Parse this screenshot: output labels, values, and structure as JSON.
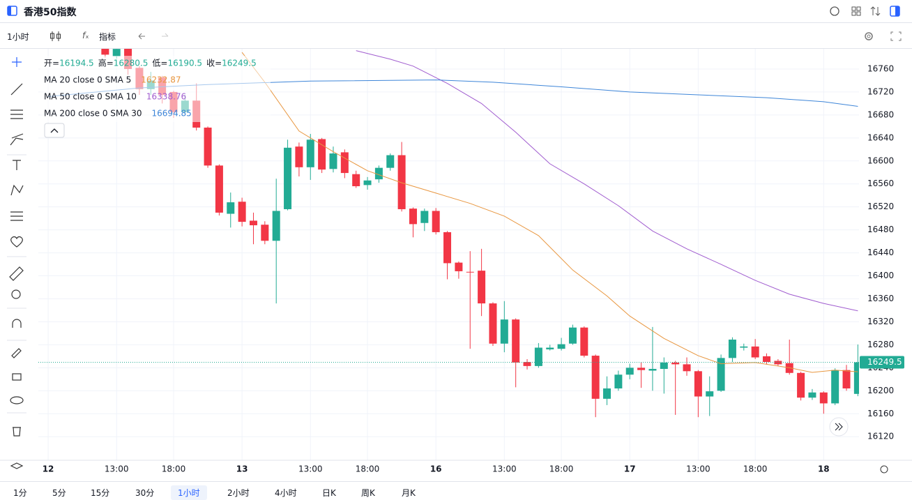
{
  "header": {
    "title": "香港50指数"
  },
  "toolbar": {
    "interval": "1小时",
    "indicator": "指标"
  },
  "timeframes": {
    "items": [
      "1分",
      "5分",
      "15分",
      "30分",
      "1小时",
      "2小时",
      "4小时",
      "日K",
      "周K",
      "月K"
    ],
    "selected": 4
  },
  "chart_data": {
    "type": "candlestick",
    "up_color": "#22ab94",
    "down_color": "#f23645",
    "x": [
      5,
      6,
      7,
      8,
      9,
      10,
      11,
      12,
      13,
      14,
      15,
      16,
      17,
      18,
      19,
      20,
      21,
      22,
      23,
      24,
      25,
      26,
      27,
      28,
      29,
      30,
      31,
      32,
      33,
      34,
      35,
      36,
      37,
      38,
      39,
      40,
      41,
      42,
      43,
      44,
      45,
      46,
      47,
      48,
      49,
      50,
      51,
      52,
      53,
      54,
      55,
      56,
      57,
      58,
      59,
      60,
      61,
      62,
      63,
      64,
      65,
      66,
      67,
      68,
      69,
      70,
      71
    ],
    "open": [
      16800,
      16782,
      16800,
      16762,
      16725,
      16745,
      16720,
      16685,
      16705,
      16658,
      16592,
      16508,
      16529,
      16496,
      16489,
      16461,
      16516,
      16625,
      16589,
      16638,
      16586,
      16615,
      16577,
      16558,
      16568,
      16588,
      16610,
      16517,
      16492,
      16513,
      16476,
      16423,
      16407,
      16409,
      16352,
      16282,
      16324,
      16250,
      16243,
      16272,
      16273,
      16282,
      16310,
      16261,
      16186,
      16204,
      16228,
      16240,
      16235,
      16238,
      16249,
      16246,
      16234,
      16190,
      16200,
      16257,
      16275,
      16277,
      16260,
      16252,
      16248,
      16231,
      16188,
      16197,
      16178,
      16236,
      16194.5
    ],
    "high": [
      16810,
      16805,
      16810,
      16765,
      16755,
      16748,
      16722,
      16715,
      16735,
      16660,
      16594,
      16545,
      16536,
      16510,
      16495,
      16569,
      16637,
      16632,
      16647,
      16640,
      16625,
      16620,
      16583,
      16572,
      16592,
      16613,
      16633,
      16519,
      16517,
      16518,
      16478,
      16425,
      16443,
      16447,
      16354,
      16356,
      16326,
      16255,
      16283,
      16280,
      16292,
      16315,
      16312,
      16263,
      16225,
      16235,
      16247,
      16250,
      16311,
      16258,
      16252,
      16258,
      16236,
      16225,
      16263,
      16293,
      16282,
      16290,
      16265,
      16255,
      16289,
      16233,
      16203,
      16199,
      16239,
      16245,
      16280.5
    ],
    "low": [
      16780,
      16778,
      16750,
      16715,
      16715,
      16700,
      16675,
      16680,
      16653,
      16588,
      16505,
      16484,
      16486,
      16455,
      16455,
      16352,
      16514,
      16573,
      16567,
      16579,
      16580,
      16570,
      16553,
      16550,
      16562,
      16583,
      16512,
      16467,
      16478,
      16472,
      16394,
      16395,
      16273,
      16330,
      16278,
      16267,
      16206,
      16237,
      16240,
      16270,
      16270,
      16280,
      16258,
      16154,
      16175,
      16200,
      16220,
      16205,
      16200,
      16195,
      16158,
      16226,
      16154,
      16156,
      16198,
      16250,
      16270,
      16255,
      16246,
      16243,
      16228,
      16183,
      16184,
      16160,
      16175,
      16200,
      16190.5
    ],
    "close": [
      16785,
      16795,
      16760,
      16725,
      16740,
      16715,
      16685,
      16705,
      16658,
      16592,
      16510,
      16528,
      16494,
      16488,
      16461,
      16513,
      16623,
      16589,
      16637,
      16585,
      16613,
      16579,
      16556,
      16566,
      16588,
      16610,
      16516,
      16490,
      16513,
      16476,
      16422,
      16408,
      16406,
      16352,
      16282,
      16324,
      16249,
      16243,
      16275,
      16275,
      16281,
      16310,
      16261,
      16186,
      16204,
      16228,
      16240,
      16236,
      16238,
      16249,
      16246,
      16234,
      16190,
      16199,
      16257,
      16289,
      16277,
      16258,
      16250,
      16246,
      16231,
      16188,
      16197,
      16178,
      16236,
      16204,
      16249.5
    ],
    "ohlc_labels": [
      "开=",
      "高=",
      "低=",
      "收="
    ],
    "ma_series": [
      {
        "name": "MA 20 close 0 SMA 5",
        "color": "#e8963f",
        "last_value": 16232.87,
        "x": [
          17,
          19,
          22,
          25,
          28,
          31,
          34,
          37,
          40,
          43,
          46,
          49,
          51,
          54,
          57,
          59,
          62,
          65,
          67,
          69,
          71
        ],
        "values": [
          16789,
          16737,
          16652,
          16616,
          16583,
          16562,
          16544,
          16526,
          16504,
          16470,
          16410,
          16365,
          16330,
          16291,
          16261,
          16247,
          16249,
          16240,
          16232,
          16236,
          16233
        ]
      },
      {
        "name": "MA 50 close 0 SMA 10",
        "color": "#a05ccf",
        "last_value": 16338.76,
        "x": [
          27,
          30,
          32,
          35,
          38,
          41,
          44,
          47,
          50,
          53,
          56,
          59,
          62,
          65,
          68,
          71
        ],
        "values": [
          16792,
          16777,
          16765,
          16735,
          16700,
          16650,
          16595,
          16560,
          16522,
          16478,
          16447,
          16420,
          16392,
          16368,
          16352,
          16339
        ]
      },
      {
        "name": "MA 200 close 0 SMA 30",
        "color": "#3d85d8",
        "last_value": 16694.85,
        "x": [
          0,
          8,
          14,
          23,
          34,
          39,
          45,
          51,
          57,
          63,
          68,
          71
        ],
        "values": [
          16712,
          16727,
          16733,
          16739,
          16741,
          16737,
          16729,
          16720,
          16715,
          16710,
          16703,
          16695
        ]
      }
    ],
    "ylim": [
      16079,
      16800
    ],
    "yticks": [
      16120,
      16160,
      16200,
      16240,
      16280,
      16320,
      16360,
      16400,
      16440,
      16480,
      16520,
      16560,
      16600,
      16640,
      16680,
      16720,
      16760
    ],
    "xlim": [
      -0.86,
      71.1
    ],
    "xticks": [
      {
        "value": 0,
        "label": "12"
      },
      {
        "value": 6,
        "label": "13:00"
      },
      {
        "value": 11,
        "label": "18:00"
      },
      {
        "value": 17,
        "label": "13"
      },
      {
        "value": 23,
        "label": "13:00"
      },
      {
        "value": 28,
        "label": "18:00"
      },
      {
        "value": 34,
        "label": "16"
      },
      {
        "value": 40,
        "label": "13:00"
      },
      {
        "value": 45,
        "label": "18:00"
      },
      {
        "value": 51,
        "label": "17"
      },
      {
        "value": 57,
        "label": "13:00"
      },
      {
        "value": 62,
        "label": "18:00"
      },
      {
        "value": 68,
        "label": "18"
      }
    ],
    "grid": true
  }
}
